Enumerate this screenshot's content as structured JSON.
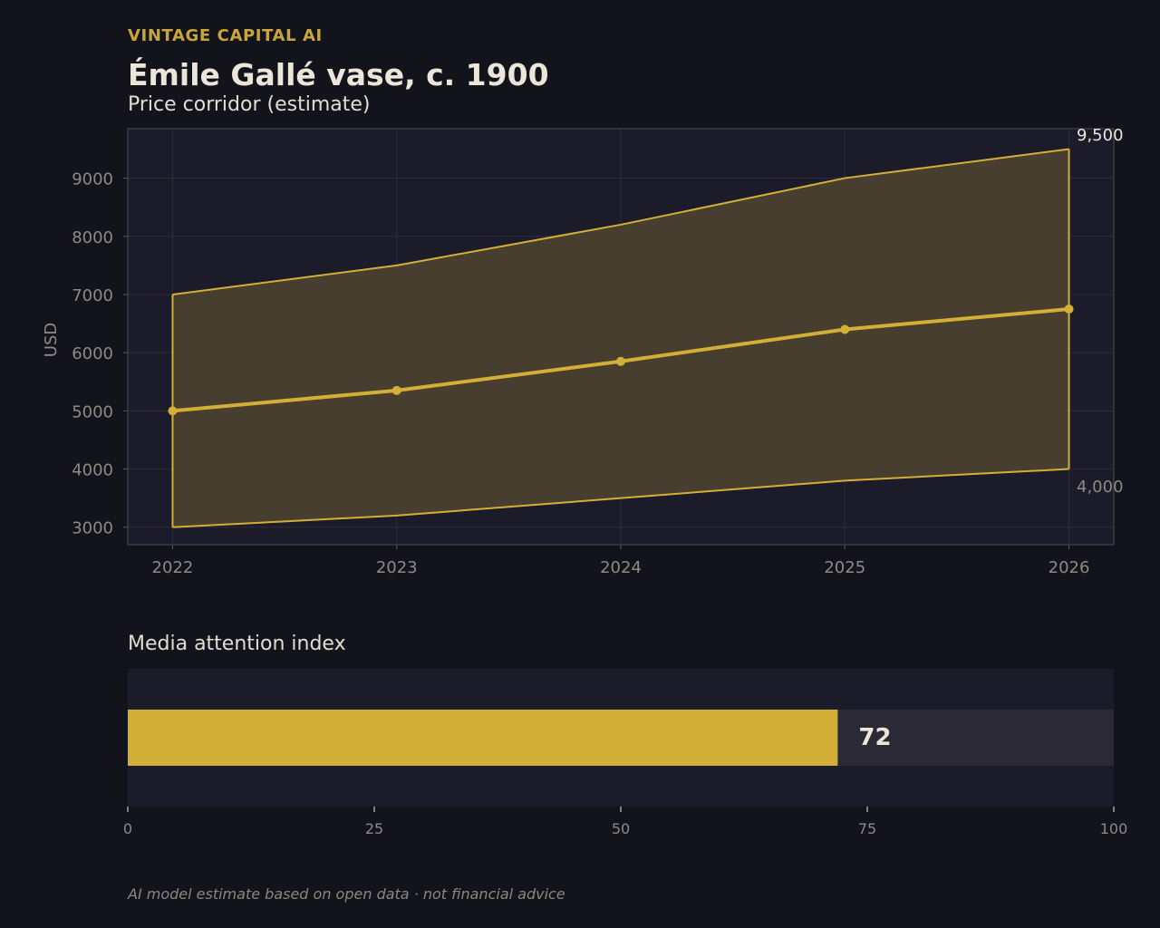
{
  "brand": "VINTAGE CAPITAL AI",
  "title": "Émile Gallé vase, c. 1900",
  "subtitle": "Price corridor (estimate)",
  "bar_section_title": "Media attention index",
  "footnote": "AI model estimate based on open data · not financial advice",
  "colors": {
    "background": "#13131c",
    "plot_background": "#1c1b29",
    "accent": "#d4af37",
    "band_fill": "#4b4030",
    "text_muted": "#8e8b84",
    "bar_track": "#2b2935"
  },
  "chart_data": [
    {
      "type": "line",
      "title": "Price corridor (estimate)",
      "xlabel": "",
      "ylabel": "USD",
      "x": [
        2022,
        2023,
        2024,
        2025,
        2026
      ],
      "xticks": [
        "2022",
        "2023",
        "2024",
        "2025",
        "2026"
      ],
      "yticks": [
        "3000",
        "4000",
        "5000",
        "6000",
        "7000",
        "8000",
        "9000"
      ],
      "ylim": [
        2700,
        9850
      ],
      "xlim": [
        2021.8,
        2026.2
      ],
      "grid": true,
      "band": {
        "upper": [
          7000,
          7500,
          8200,
          9000,
          9500
        ],
        "lower": [
          3000,
          3200,
          3500,
          3800,
          4000
        ]
      },
      "series": [
        {
          "values": [
            5000,
            5350,
            5850,
            6400,
            6750
          ]
        }
      ],
      "annotations": {
        "upper_end": "9,500",
        "lower_end": "4,000"
      }
    },
    {
      "type": "bar",
      "title": "Media attention index",
      "value": 72,
      "value_label": "72",
      "xlim": [
        0,
        100
      ],
      "xticks": [
        "0",
        "25",
        "50",
        "75",
        "100"
      ]
    }
  ]
}
